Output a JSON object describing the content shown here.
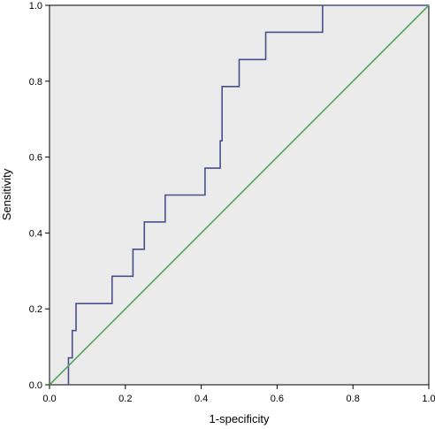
{
  "chart_data": {
    "type": "line",
    "title": "",
    "xlabel": "1-specificity",
    "ylabel": "Sensitivity",
    "xlim": [
      0,
      1
    ],
    "ylim": [
      0,
      1
    ],
    "x_ticks": [
      "0.0",
      "0.2",
      "0.4",
      "0.6",
      "0.8",
      "1.0"
    ],
    "y_ticks": [
      "0.0",
      "0.2",
      "0.4",
      "0.6",
      "0.8",
      "1.0"
    ],
    "grid": false,
    "legend": "none",
    "plot_background": "#ebebeb",
    "series": [
      {
        "color": "#4a4f8c",
        "step": true,
        "x": [
          0.05,
          0.05,
          0.06,
          0.06,
          0.07,
          0.07,
          0.165,
          0.165,
          0.22,
          0.22,
          0.25,
          0.25,
          0.305,
          0.305,
          0.41,
          0.41,
          0.45,
          0.45,
          0.455,
          0.455,
          0.5,
          0.5,
          0.57,
          0.57,
          0.72,
          0.72,
          1.0
        ],
        "y": [
          0.0,
          0.071,
          0.071,
          0.143,
          0.143,
          0.214,
          0.214,
          0.286,
          0.286,
          0.357,
          0.357,
          0.429,
          0.429,
          0.5,
          0.5,
          0.571,
          0.571,
          0.643,
          0.643,
          0.786,
          0.786,
          0.857,
          0.857,
          0.929,
          0.929,
          1.0,
          1.0
        ]
      },
      {
        "color": "#5aa35a",
        "step": false,
        "x": [
          0,
          1
        ],
        "y": [
          0,
          1
        ]
      }
    ]
  }
}
